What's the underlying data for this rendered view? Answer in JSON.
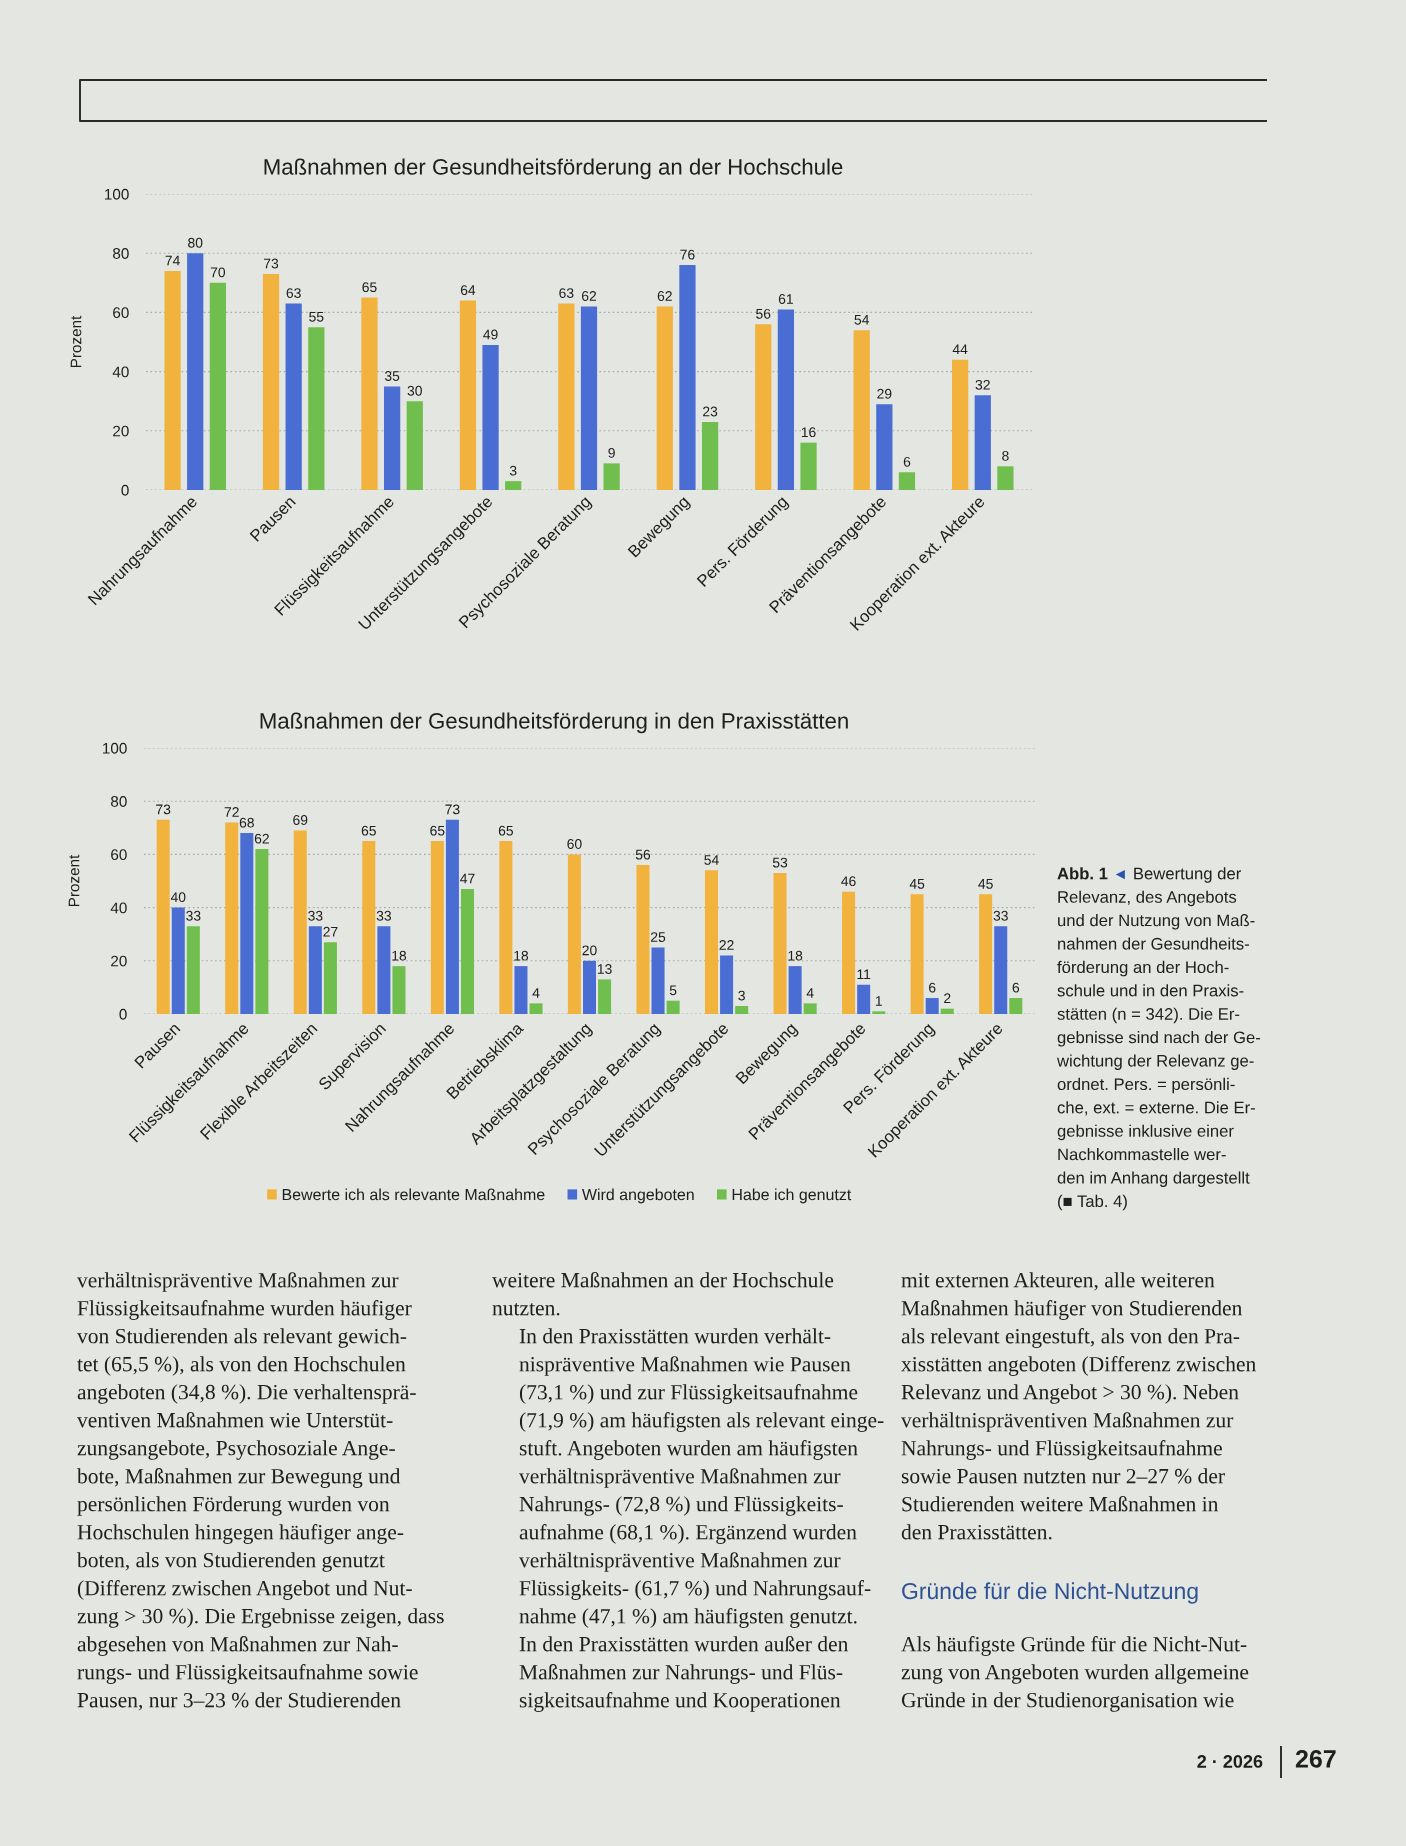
{
  "chart_data": [
    {
      "type": "bar",
      "title": "Maßnahmen der Gesundheitsförderung an der Hochschule",
      "ylabel": "Prozent",
      "categories": [
        "Nahrungsaufnahme",
        "Pausen",
        "Flüssigkeitsaufnahme",
        "Unterstützungsangebote",
        "Psychosoziale Beratung",
        "Bewegung",
        "Pers. Förderung",
        "Präventionsangebote",
        "Kooperation ext. Akteure"
      ],
      "series": [
        {
          "color": "#f2b23e",
          "values": [
            74,
            73,
            65,
            64,
            63,
            62,
            56,
            54,
            44
          ]
        },
        {
          "color": "#4a6dd4",
          "values": [
            80,
            63,
            35,
            49,
            62,
            76,
            61,
            29,
            32
          ]
        },
        {
          "color": "#70bf4e",
          "values": [
            70,
            55,
            30,
            3,
            9,
            23,
            16,
            6,
            8
          ]
        }
      ],
      "ylim": [
        0,
        100
      ],
      "yticks": [
        0,
        20,
        40,
        60,
        80,
        100
      ],
      "grid": "y",
      "data_labels": true
    },
    {
      "type": "bar",
      "title": "Maßnahmen der Gesundheitsförderung in den Praxisstätten",
      "ylabel": "Prozent",
      "categories": [
        "Pausen",
        "Flüssigkeitsaufnahme",
        "Flexible Arbeitszeiten",
        "Supervision",
        "Nahrungsaufnahme",
        "Betriebsklima",
        "Arbeitsplatzgestaltung",
        "Psychosoziale Beratung",
        "Unterstützungsangebote",
        "Bewegung",
        "Präventionsangebote",
        "Pers. Förderung",
        "Kooperation ext. Akteure"
      ],
      "series": [
        {
          "name": "Bewerte ich als relevante Maßnahme",
          "color": "#f2b23e",
          "values": [
            73,
            72,
            69,
            65,
            65,
            65,
            60,
            56,
            54,
            53,
            46,
            45,
            45
          ]
        },
        {
          "name": "Wird angeboten",
          "color": "#4a6dd4",
          "values": [
            40,
            68,
            33,
            33,
            73,
            18,
            20,
            25,
            22,
            18,
            11,
            6,
            33
          ]
        },
        {
          "name": "Habe ich genutzt",
          "color": "#70bf4e",
          "values": [
            33,
            62,
            27,
            18,
            47,
            4,
            13,
            5,
            3,
            4,
            1,
            2,
            6
          ]
        }
      ],
      "ylim": [
        0,
        100
      ],
      "yticks": [
        0,
        20,
        40,
        60,
        80,
        100
      ],
      "grid": "y",
      "data_labels": true,
      "legend": "bottom",
      "annotations": [
        "Abb. 1",
        "◄",
        "Bewertung der",
        "Relevanz, des Angebots\nund der Nutzung von Maß-\nnahmen der Gesundheits-\nförderung an der Hoch-\nschule und in den Praxis-\nstätten (n = 342). Die Er-\ngebnisse sind nach der Ge-\nwichtung der Relevanz ge-\nordnet. Pers. = persönli-\nche, ext. = externe. Die Er-\ngebnisse inklusive einer\nNachkommastelle wer-\nden im Anhang dargestellt\n(■ Tab. 4)",
        "verhältnispräventive Maßnahmen zur\nFlüssigkeitsaufnahme wurden häufiger\nvon Studierenden als relevant gewich-\ntet (65,5 %), als von den Hochschulen\nangeboten (34,8 %). Die verhaltensprä-\nventiven Maßnahmen wie Unterstüt-\nzungsangebote, Psychosoziale Ange-\nbote, Maßnahmen zur Bewegung und\npersönlichen Förderung wurden von\nHochschulen hingegen häufiger ange-\nboten, als von Studierenden genutzt\n(Differenz zwischen Angebot und Nut-\nzung > 30 %). Die Ergebnisse zeigen, dass\nabgesehen von Maßnahmen zur Nah-\nrungs- und Flüssigkeitsaufnahme sowie\nPausen, nur 3–23 % der Studierenden",
        "weitere Maßnahmen an der Hochschule\nnutzten.",
        "In den Praxisstätten wurden verhält-\nnispräventive Maßnahmen wie Pausen\n(73,1 %) und zur Flüssigkeitsaufnahme\n(71,9 %) am häufigsten als relevant einge-\nstuft. Angeboten wurden am häufigsten\nverhältnispräventive Maßnahmen zur\nNahrungs- (72,8 %) und Flüssigkeits-\naufnahme (68,1 %). Ergänzend wurden\nverhältnispräventive Maßnahmen zur\nFlüssigkeits- (61,7 %) und Nahrungsauf-\nnahme (47,1 %) am häufigsten genutzt.\nIn den Praxisstätten wurden außer den\nMaßnahmen zur Nahrungs- und Flüs-\nsigkeitsaufnahme und Kooperationen",
        "mit externen Akteuren, alle weiteren\nMaßnahmen häufiger von Studierenden\nals relevant eingestuft, als von den Pra-\nxisstätten angeboten (Differenz zwischen\nRelevanz und Angebot > 30 %). Neben\nverhältnispräventiven Maßnahmen zur\nNahrungs- und Flüssigkeitsaufnahme\nsowie Pausen nutzten nur 2–27 % der\nStudierenden weitere Maßnahmen in\nden Praxisstätten.",
        "Gründe für die Nicht-Nutzung",
        "Als häufigste Gründe für die Nicht-Nut-\nzung von Angeboten wurden allgemeine\nGründe in der Studienorganisation wie",
        "2 · 2026",
        "267"
      ]
    }
  ]
}
